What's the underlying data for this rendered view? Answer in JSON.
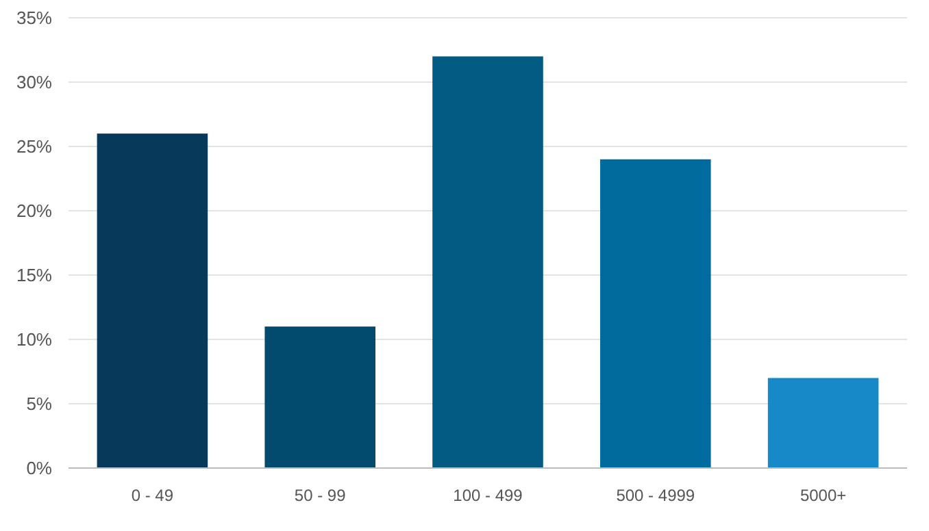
{
  "chart_data": {
    "type": "bar",
    "categories": [
      "0 - 49",
      "50 - 99",
      "100 - 499",
      "500 - 4999",
      "5000+"
    ],
    "values": [
      26,
      11,
      32,
      24,
      7
    ],
    "colors": [
      "#07395a",
      "#024a6e",
      "#035a82",
      "#026b9e",
      "#1788c8"
    ],
    "ylim": [
      0,
      35
    ],
    "yticks": [
      {
        "value": 0,
        "label": "0%"
      },
      {
        "value": 5,
        "label": "5%"
      },
      {
        "value": 10,
        "label": "10%"
      },
      {
        "value": 15,
        "label": "15%"
      },
      {
        "value": 20,
        "label": "20%"
      },
      {
        "value": 25,
        "label": "25%"
      },
      {
        "value": 30,
        "label": "30%"
      },
      {
        "value": 35,
        "label": "35%"
      }
    ],
    "grid": "y"
  }
}
